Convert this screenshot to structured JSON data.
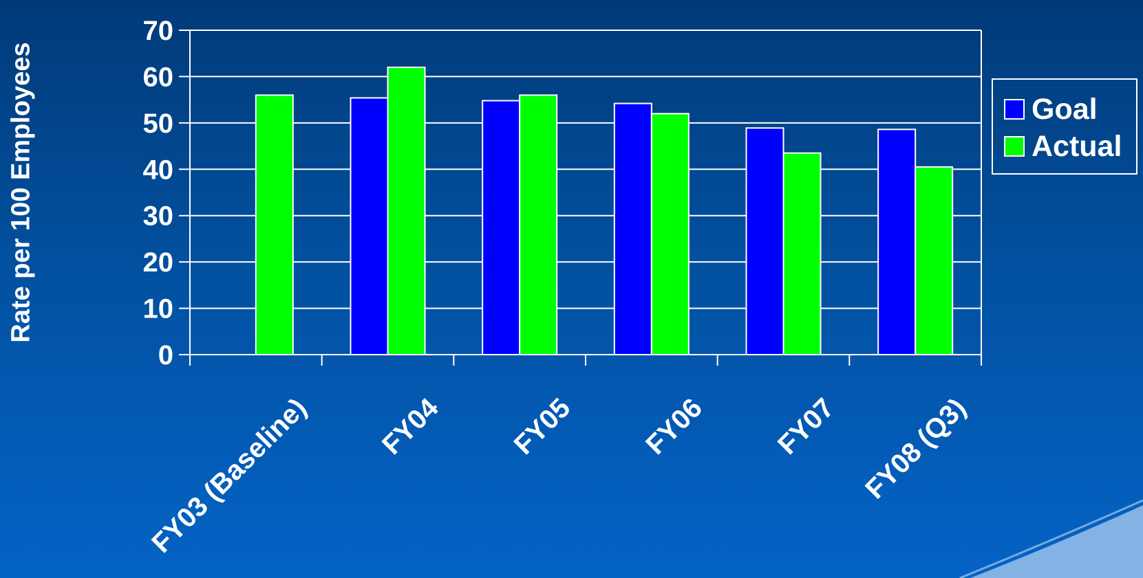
{
  "chart_data": {
    "type": "bar",
    "ylabel": "Rate per 100 Employees",
    "xlabel": "",
    "categories": [
      "FY03 (Baseline)",
      "FY04",
      "FY05",
      "FY06",
      "FY07",
      "FY08 (Q3)"
    ],
    "series": [
      {
        "name": "Goal",
        "color": "#0000ff",
        "values": [
          null,
          55.4,
          54.8,
          54.2,
          48.9,
          48.6
        ]
      },
      {
        "name": "Actual",
        "color": "#00ff00",
        "values": [
          56,
          62,
          56,
          52,
          43.5,
          40.5
        ]
      }
    ],
    "ylim": [
      0,
      70
    ],
    "yticks": [
      0,
      10,
      20,
      30,
      40,
      50,
      60,
      70
    ],
    "grid": true,
    "legend": "right"
  },
  "colors": {
    "background_top": "#013a78",
    "background_bottom": "#0463c6",
    "axis": "#ffffff"
  }
}
